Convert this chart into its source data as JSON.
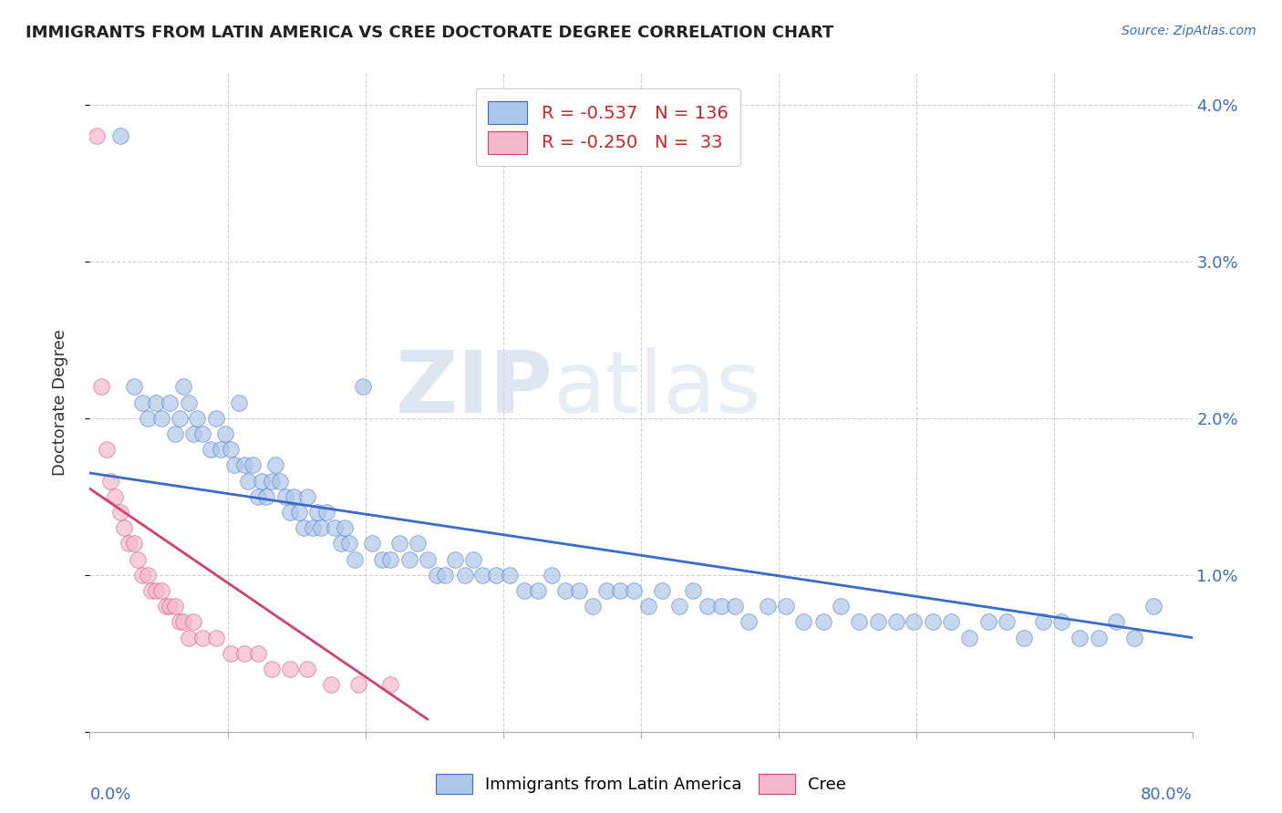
{
  "title": "IMMIGRANTS FROM LATIN AMERICA VS CREE DOCTORATE DEGREE CORRELATION CHART",
  "source": "Source: ZipAtlas.com",
  "ylabel": "Doctorate Degree",
  "right_yticks": [
    "4.0%",
    "3.0%",
    "2.0%",
    "1.0%"
  ],
  "right_ytick_vals": [
    0.04,
    0.03,
    0.02,
    0.01
  ],
  "legend_blue_R": "-0.537",
  "legend_blue_N": "136",
  "legend_pink_R": "-0.250",
  "legend_pink_N": "33",
  "blue_color": "#aec6e8",
  "pink_color": "#f4b8cc",
  "blue_line_color": "#3a6bc8",
  "pink_line_color": "#d04070",
  "blue_scatter_x": [
    0.022,
    0.032,
    0.038,
    0.042,
    0.048,
    0.052,
    0.058,
    0.062,
    0.065,
    0.068,
    0.072,
    0.075,
    0.078,
    0.082,
    0.088,
    0.092,
    0.095,
    0.098,
    0.102,
    0.105,
    0.108,
    0.112,
    0.115,
    0.118,
    0.122,
    0.125,
    0.128,
    0.132,
    0.135,
    0.138,
    0.142,
    0.145,
    0.148,
    0.152,
    0.155,
    0.158,
    0.162,
    0.165,
    0.168,
    0.172,
    0.178,
    0.182,
    0.185,
    0.188,
    0.192,
    0.198,
    0.205,
    0.212,
    0.218,
    0.225,
    0.232,
    0.238,
    0.245,
    0.252,
    0.258,
    0.265,
    0.272,
    0.278,
    0.285,
    0.295,
    0.305,
    0.315,
    0.325,
    0.335,
    0.345,
    0.355,
    0.365,
    0.375,
    0.385,
    0.395,
    0.405,
    0.415,
    0.428,
    0.438,
    0.448,
    0.458,
    0.468,
    0.478,
    0.492,
    0.505,
    0.518,
    0.532,
    0.545,
    0.558,
    0.572,
    0.585,
    0.598,
    0.612,
    0.625,
    0.638,
    0.652,
    0.665,
    0.678,
    0.692,
    0.705,
    0.718,
    0.732,
    0.745,
    0.758,
    0.772
  ],
  "blue_scatter_y": [
    0.038,
    0.022,
    0.021,
    0.02,
    0.021,
    0.02,
    0.021,
    0.019,
    0.02,
    0.022,
    0.021,
    0.019,
    0.02,
    0.019,
    0.018,
    0.02,
    0.018,
    0.019,
    0.018,
    0.017,
    0.021,
    0.017,
    0.016,
    0.017,
    0.015,
    0.016,
    0.015,
    0.016,
    0.017,
    0.016,
    0.015,
    0.014,
    0.015,
    0.014,
    0.013,
    0.015,
    0.013,
    0.014,
    0.013,
    0.014,
    0.013,
    0.012,
    0.013,
    0.012,
    0.011,
    0.022,
    0.012,
    0.011,
    0.011,
    0.012,
    0.011,
    0.012,
    0.011,
    0.01,
    0.01,
    0.011,
    0.01,
    0.011,
    0.01,
    0.01,
    0.01,
    0.009,
    0.009,
    0.01,
    0.009,
    0.009,
    0.008,
    0.009,
    0.009,
    0.009,
    0.008,
    0.009,
    0.008,
    0.009,
    0.008,
    0.008,
    0.008,
    0.007,
    0.008,
    0.008,
    0.007,
    0.007,
    0.008,
    0.007,
    0.007,
    0.007,
    0.007,
    0.007,
    0.007,
    0.006,
    0.007,
    0.007,
    0.006,
    0.007,
    0.007,
    0.006,
    0.006,
    0.007,
    0.006,
    0.008
  ],
  "pink_scatter_x": [
    0.005,
    0.008,
    0.012,
    0.015,
    0.018,
    0.022,
    0.025,
    0.028,
    0.032,
    0.035,
    0.038,
    0.042,
    0.045,
    0.048,
    0.052,
    0.055,
    0.058,
    0.062,
    0.065,
    0.068,
    0.072,
    0.075,
    0.082,
    0.092,
    0.102,
    0.112,
    0.122,
    0.132,
    0.145,
    0.158,
    0.175,
    0.195,
    0.218
  ],
  "pink_scatter_y": [
    0.038,
    0.022,
    0.018,
    0.016,
    0.015,
    0.014,
    0.013,
    0.012,
    0.012,
    0.011,
    0.01,
    0.01,
    0.009,
    0.009,
    0.009,
    0.008,
    0.008,
    0.008,
    0.007,
    0.007,
    0.006,
    0.007,
    0.006,
    0.006,
    0.005,
    0.005,
    0.005,
    0.004,
    0.004,
    0.004,
    0.003,
    0.003,
    0.003
  ],
  "blue_trendline_x": [
    0.0,
    0.8
  ],
  "blue_trendline_y": [
    0.0165,
    0.006
  ],
  "pink_trendline_x": [
    0.0,
    0.245
  ],
  "pink_trendline_y": [
    0.0155,
    0.0008
  ],
  "xlim": [
    0.0,
    0.8
  ],
  "ylim": [
    0.0,
    0.042
  ],
  "watermark_zip": "ZIP",
  "watermark_atlas": "atlas",
  "background_color": "#ffffff",
  "grid_color": "#d0d0d0"
}
